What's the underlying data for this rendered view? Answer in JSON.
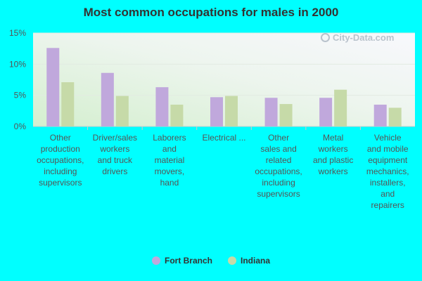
{
  "watermark": "City-Data.com",
  "colors": {
    "series1": "#C0A8DC",
    "series2": "#C6DAA8",
    "background": "#00FFFF"
  },
  "chart_data": {
    "type": "bar",
    "title": "Most common occupations for males in 2000",
    "xlabel": "",
    "ylabel": "",
    "ylim": [
      0,
      15
    ],
    "yticks": [
      "0%",
      "5%",
      "10%",
      "15%"
    ],
    "grid": true,
    "legend_position": "bottom",
    "categories": [
      [
        "Other",
        "production",
        "occupations,",
        "including",
        "supervisors"
      ],
      [
        "Driver/sales",
        "workers",
        "and truck",
        "drivers"
      ],
      [
        "Laborers",
        "and",
        "material",
        "movers,",
        "hand"
      ],
      [
        "Electrical ..."
      ],
      [
        "Other",
        "sales and",
        "related",
        "occupations,",
        "including",
        "supervisors"
      ],
      [
        "Metal",
        "workers",
        "and plastic",
        "workers"
      ],
      [
        "Vehicle",
        "and mobile",
        "equipment",
        "mechanics,",
        "installers,",
        "and",
        "repairers"
      ]
    ],
    "series": [
      {
        "name": "Fort Branch",
        "values": [
          12.6,
          8.6,
          6.3,
          4.7,
          4.6,
          4.6,
          3.5
        ]
      },
      {
        "name": "Indiana",
        "values": [
          7.1,
          4.9,
          3.5,
          4.9,
          3.6,
          5.9,
          3.0
        ]
      }
    ]
  }
}
